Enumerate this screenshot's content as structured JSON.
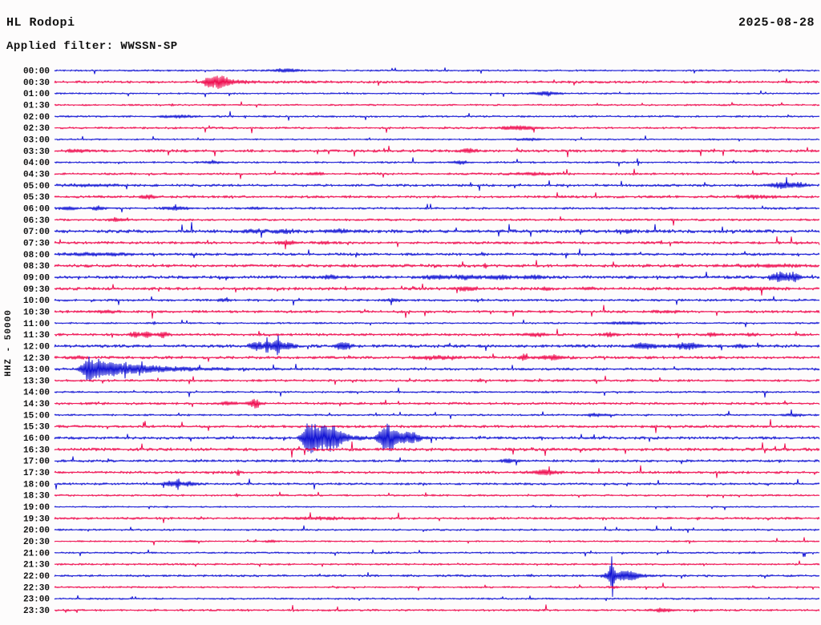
{
  "header": {
    "station": "HL Rodopi",
    "date": "2025-08-28",
    "filter_label": "Applied filter: WWSSN-SP"
  },
  "axis": {
    "left_label": "HHZ - 50000"
  },
  "chart_data": {
    "type": "helicorder",
    "title": "HL Rodopi seismic drum record, channel HHZ, scale 50000, filter WWSSN-SP",
    "minutes_per_row": 30,
    "rows_count": 48,
    "colors": {
      "even_rows": "#1113d4",
      "odd_rows": "#ef0b4e",
      "background": "#fdfcfc",
      "text": "#111111"
    },
    "event_format": "[center_minute, width_minute, amplitude_px, optional_decay_minute]",
    "rows": [
      {
        "t": "00:00",
        "noise": 0.55,
        "events": [
          [
            9.1,
            0.5,
            2
          ]
        ]
      },
      {
        "t": "00:30",
        "noise": 0.8,
        "events": [
          [
            6.1,
            0.25,
            6.5,
            0.8
          ],
          [
            6.55,
            0.2,
            5.5
          ]
        ]
      },
      {
        "t": "01:00",
        "noise": 0.5,
        "events": [
          [
            19.25,
            0.55,
            2
          ]
        ]
      },
      {
        "t": "01:30",
        "noise": 0.55,
        "events": [
          [
            4.62,
            0.06,
            1.5
          ]
        ]
      },
      {
        "t": "02:00",
        "noise": 0.6,
        "events": [
          [
            4.8,
            0.6,
            1.3
          ],
          [
            8.24,
            0.08,
            1.2
          ]
        ]
      },
      {
        "t": "02:30",
        "noise": 0.65,
        "events": [
          [
            18.3,
            0.7,
            2.3
          ]
        ]
      },
      {
        "t": "03:00",
        "noise": 0.5,
        "events": [
          [
            18.6,
            0.5,
            1.2
          ]
        ]
      },
      {
        "t": "03:30",
        "noise": 0.9,
        "events": [
          [
            16.25,
            0.35,
            2.3
          ],
          [
            1.0,
            0.5,
            1.2
          ]
        ]
      },
      {
        "t": "04:00",
        "noise": 0.6,
        "events": [
          [
            15.9,
            0.3,
            1.8
          ],
          [
            6.2,
            0.4,
            1.0
          ]
        ]
      },
      {
        "t": "04:30",
        "noise": 0.7,
        "events": [
          [
            10.2,
            0.3,
            1.3
          ],
          [
            18.7,
            0.8,
            1.3
          ]
        ]
      },
      {
        "t": "05:00",
        "noise": 0.8,
        "events": [
          [
            28.5,
            0.45,
            3.2
          ],
          [
            29.2,
            0.3,
            2.5
          ],
          [
            1.5,
            1.2,
            1.0
          ]
        ]
      },
      {
        "t": "05:30",
        "noise": 0.8,
        "events": [
          [
            3.68,
            0.3,
            1.8
          ],
          [
            27.5,
            0.9,
            1.3
          ]
        ]
      },
      {
        "t": "06:00",
        "noise": 0.7,
        "events": [
          [
            0.53,
            0.3,
            1.8
          ],
          [
            1.7,
            0.25,
            2.2
          ],
          [
            4.8,
            0.5,
            1.6
          ],
          [
            7.9,
            0.3,
            1.2
          ]
        ]
      },
      {
        "t": "06:30",
        "noise": 0.7,
        "events": [
          [
            2.42,
            0.3,
            2.2
          ]
        ]
      },
      {
        "t": "07:00",
        "noise": 1.1,
        "events": [
          [
            7.8,
            0.4,
            1.6
          ],
          [
            9.0,
            0.4,
            1.6
          ],
          [
            11.1,
            0.5,
            1.6
          ],
          [
            22.4,
            0.4,
            1.2
          ]
        ]
      },
      {
        "t": "07:30",
        "noise": 0.85,
        "events": [
          [
            9.1,
            0.3,
            2.2
          ],
          [
            10.6,
            0.25,
            1.3
          ]
        ]
      },
      {
        "t": "08:00",
        "noise": 0.85,
        "events": [
          [
            1.6,
            1.3,
            1.3
          ],
          [
            16.8,
            0.1,
            1.5
          ]
        ]
      },
      {
        "t": "08:30",
        "noise": 1.0,
        "events": [
          [
            16.9,
            0.07,
            2.8
          ],
          [
            28.0,
            1.2,
            1.2
          ]
        ]
      },
      {
        "t": "09:00",
        "noise": 1.0,
        "events": [
          [
            10.8,
            0.35,
            1.8
          ],
          [
            15.0,
            0.5,
            2.0
          ],
          [
            16.1,
            0.5,
            2.2
          ],
          [
            17.5,
            0.5,
            2.0
          ],
          [
            18.8,
            0.4,
            1.8
          ],
          [
            28.43,
            0.3,
            5.5
          ],
          [
            29.0,
            0.25,
            5.5
          ]
        ]
      },
      {
        "t": "09:30",
        "noise": 0.95,
        "events": [
          [
            16.2,
            0.4,
            1.8
          ],
          [
            19.3,
            0.2,
            1.4
          ],
          [
            20.9,
            0.3,
            1.4
          ],
          [
            27.5,
            1.0,
            1.3
          ]
        ]
      },
      {
        "t": "10:00",
        "noise": 0.75,
        "events": [
          [
            6.6,
            0.25,
            1.4
          ],
          [
            13.3,
            0.3,
            1.4
          ]
        ]
      },
      {
        "t": "10:30",
        "noise": 0.85,
        "events": [
          [
            2.0,
            0.5,
            1.2
          ],
          [
            24.0,
            0.6,
            1.0
          ]
        ]
      },
      {
        "t": "11:00",
        "noise": 0.55,
        "events": [
          [
            3.9,
            0.07,
            1.8
          ],
          [
            22.6,
            1.0,
            1.4
          ]
        ]
      },
      {
        "t": "11:30",
        "noise": 0.85,
        "events": [
          [
            3.14,
            0.18,
            3.2
          ],
          [
            3.62,
            0.18,
            3.2
          ],
          [
            4.25,
            0.2,
            3.0
          ],
          [
            18.9,
            0.4,
            2.0
          ],
          [
            21.8,
            0.2,
            2.6
          ],
          [
            25.8,
            0.3,
            1.4
          ],
          [
            27.3,
            0.25,
            1.3
          ]
        ]
      },
      {
        "t": "12:00",
        "noise": 1.0,
        "events": [
          [
            7.95,
            0.3,
            4.5
          ],
          [
            8.33,
            0.05,
            9
          ],
          [
            8.6,
            0.25,
            5
          ],
          [
            8.77,
            0.05,
            11
          ],
          [
            9.1,
            0.3,
            4
          ],
          [
            11.32,
            0.3,
            4.5
          ],
          [
            23.2,
            0.5,
            3
          ],
          [
            24.8,
            0.5,
            3.8
          ],
          [
            26.9,
            0.3,
            1.6
          ]
        ]
      },
      {
        "t": "12:30",
        "noise": 0.9,
        "events": [
          [
            0.9,
            0.3,
            1.5
          ],
          [
            14.9,
            0.8,
            1.4
          ],
          [
            18.4,
            0.15,
            3.2
          ],
          [
            19.5,
            0.5,
            2.2
          ]
        ]
      },
      {
        "t": "13:00",
        "noise": 0.8,
        "events": [
          [
            1.3,
            0.25,
            13,
            1.8
          ],
          [
            1.35,
            0.04,
            15
          ]
        ]
      },
      {
        "t": "13:30",
        "noise": 0.75,
        "events": [
          [
            16.7,
            0.1,
            1.4
          ]
        ]
      },
      {
        "t": "14:00",
        "noise": 0.6,
        "events": []
      },
      {
        "t": "14:30",
        "noise": 0.8,
        "events": [
          [
            6.8,
            0.35,
            1.6
          ],
          [
            7.86,
            0.22,
            5.5
          ]
        ]
      },
      {
        "t": "15:00",
        "noise": 0.6,
        "events": [
          [
            21.2,
            0.4,
            1.3
          ],
          [
            29.0,
            0.4,
            1.3
          ]
        ]
      },
      {
        "t": "15:30",
        "noise": 0.85,
        "events": []
      },
      {
        "t": "16:00",
        "noise": 0.9,
        "events": [
          [
            10.0,
            0.25,
            22,
            0.7
          ],
          [
            10.9,
            0.4,
            9
          ],
          [
            13.05,
            0.3,
            18,
            0.45
          ],
          [
            14.0,
            0.3,
            4
          ]
        ]
      },
      {
        "t": "16:30",
        "noise": 1.0,
        "events": []
      },
      {
        "t": "17:00",
        "noise": 0.8,
        "events": [
          [
            17.8,
            0.35,
            1.6
          ]
        ]
      },
      {
        "t": "17:30",
        "noise": 0.8,
        "events": [
          [
            7.2,
            0.05,
            4.5
          ],
          [
            19.2,
            0.5,
            2.8
          ]
        ]
      },
      {
        "t": "18:00",
        "noise": 0.7,
        "events": [
          [
            4.6,
            0.35,
            3.0
          ],
          [
            4.84,
            0.05,
            7
          ],
          [
            5.3,
            0.3,
            2.0
          ]
        ]
      },
      {
        "t": "18:30",
        "noise": 0.6,
        "events": [
          [
            7.14,
            0.08,
            1.4
          ]
        ]
      },
      {
        "t": "19:00",
        "noise": 0.45,
        "events": [
          [
            4.4,
            0.06,
            1.0
          ]
        ]
      },
      {
        "t": "19:30",
        "noise": 0.75,
        "events": [
          [
            10.5,
            1.5,
            1.0
          ]
        ]
      },
      {
        "t": "20:00",
        "noise": 0.6,
        "events": []
      },
      {
        "t": "20:30",
        "noise": 0.5,
        "events": [
          [
            5.3,
            0.25,
            1.0
          ],
          [
            8.5,
            0.25,
            1.0
          ]
        ]
      },
      {
        "t": "21:00",
        "noise": 0.55,
        "events": []
      },
      {
        "t": "21:30",
        "noise": 0.6,
        "events": []
      },
      {
        "t": "22:00",
        "noise": 0.7,
        "events": [
          [
            21.86,
            0.06,
            24
          ],
          [
            21.95,
            0.35,
            7,
            0.5
          ],
          [
            22.6,
            0.4,
            3
          ]
        ]
      },
      {
        "t": "22:30",
        "noise": 0.55,
        "events": [
          [
            21.9,
            0.15,
            1.4
          ]
        ]
      },
      {
        "t": "23:00",
        "noise": 0.55,
        "events": []
      },
      {
        "t": "23:30",
        "noise": 0.65,
        "events": [
          [
            23.9,
            0.4,
            2.2
          ],
          [
            25.1,
            0.05,
            1.3
          ]
        ]
      }
    ]
  }
}
